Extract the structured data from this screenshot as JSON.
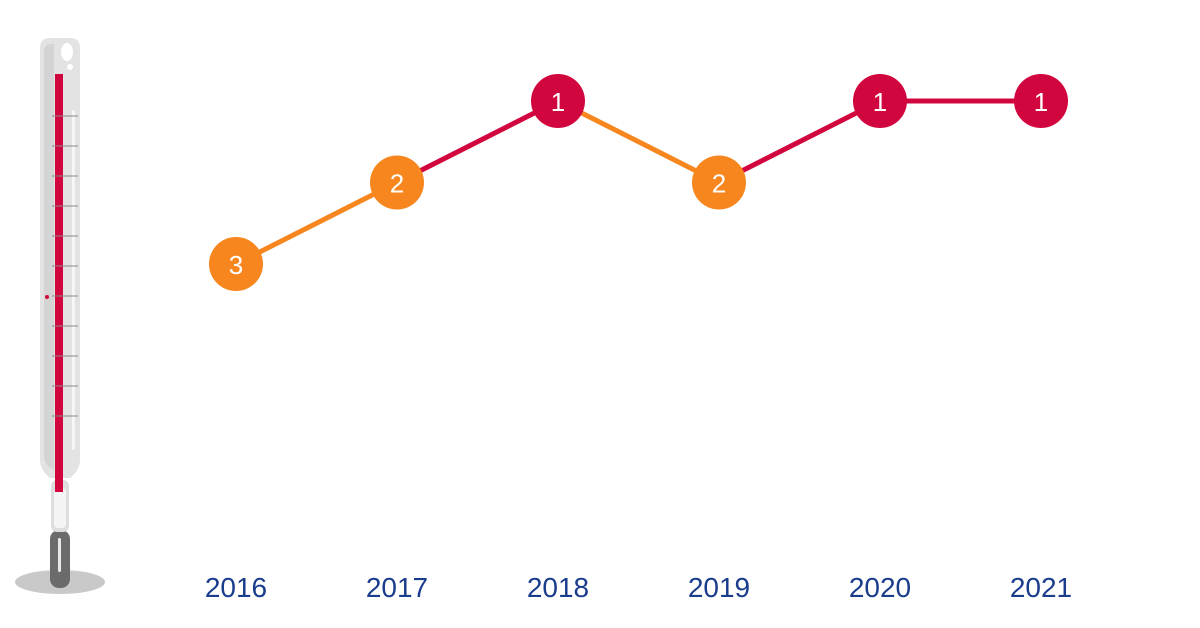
{
  "chart_data": {
    "type": "line",
    "x": [
      "2016",
      "2017",
      "2018",
      "2019",
      "2020",
      "2021"
    ],
    "series": [
      {
        "values": [
          3,
          2,
          1,
          2,
          1,
          1
        ]
      }
    ],
    "ylim": [
      1,
      3
    ],
    "y_inverted": true,
    "grid": false,
    "legend": "none",
    "colors": {
      "rising": "#f7861e",
      "top": "#d2063f",
      "year_text": "#1a3c8c"
    }
  },
  "thermometer": {
    "icon": "thermometer-icon",
    "mercury_color": "#d2063f",
    "glass_color": "#e3e3e3",
    "bulb_color": "#6b6b6b"
  }
}
